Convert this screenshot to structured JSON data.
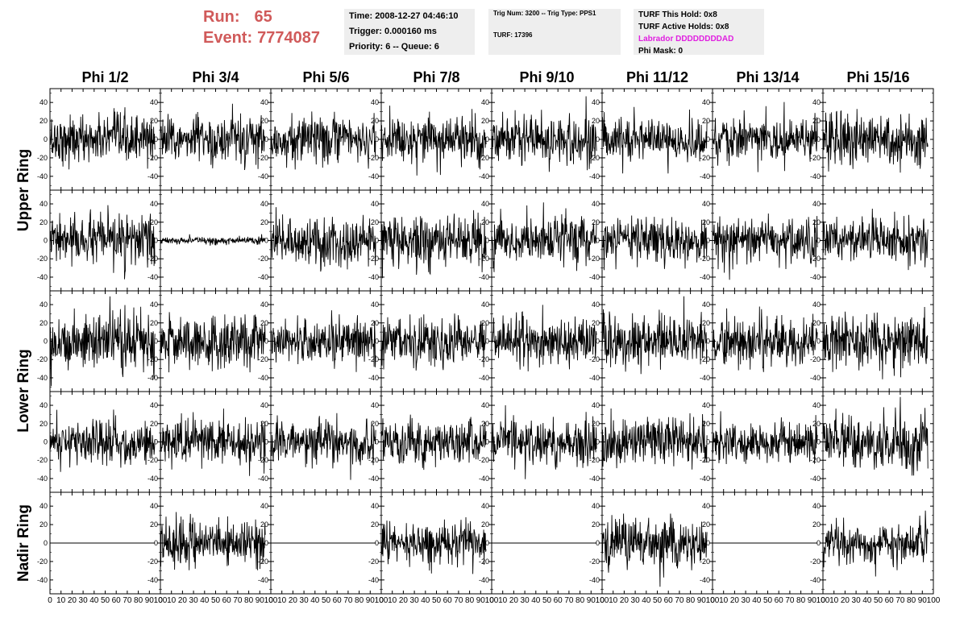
{
  "run_info": {
    "run_label": "Run:",
    "run_number": "65",
    "event_label": "Event:",
    "event_number": "7774087"
  },
  "info_panel_1": {
    "time": "Time: 2008-12-27 04:46:10",
    "trigger": "Trigger: 0.000160 ms",
    "priority": "Priority: 6 -- Queue: 6"
  },
  "info_panel_2": {
    "trig": "Trig Num: 3200 -- Trig Type: PPS1",
    "turf": "TURF: 17396"
  },
  "info_panel_3": {
    "hold": "TURF This Hold: 0x8",
    "active": "TURF Active Holds: 0x8",
    "labrador": "Labrador DDDDDDDDAD",
    "phimask": "Phi Mask: 0"
  },
  "colors": {
    "run_text": "#d05a5a",
    "labrador_text": "#e020e0",
    "trace": "#000000",
    "panel_bg": "#eeeeee"
  },
  "columns": [
    "Phi 1/2",
    "Phi 3/4",
    "Phi 5/6",
    "Phi 7/8",
    "Phi 9/10",
    "Phi 11/12",
    "Phi 13/14",
    "Phi 15/16"
  ],
  "rows": [
    "Upper Ring",
    "Upper Ring",
    "Lower Ring",
    "Lower Ring",
    "Nadir Ring"
  ],
  "ring_labels": [
    "Upper Ring",
    "Lower Ring",
    "Nadir Ring"
  ],
  "chart_data": {
    "type": "line",
    "grid": false,
    "xlim": [
      0,
      100
    ],
    "ylim": [
      -55,
      55
    ],
    "y_ticks": [
      -40,
      -20,
      0,
      20,
      40
    ],
    "x_tick_labels": [
      "0",
      "10",
      "20",
      "30",
      "40",
      "50",
      "60",
      "70",
      "80",
      "90",
      "100"
    ],
    "samples": 260,
    "x_end": 95,
    "waveform_amplitude": [
      [
        13,
        13,
        13,
        13,
        14,
        11,
        12,
        14
      ],
      [
        13,
        2,
        14,
        15,
        13,
        12,
        12,
        13
      ],
      [
        16,
        14,
        13,
        14,
        13,
        14,
        13,
        14
      ],
      [
        12,
        13,
        12,
        12,
        12,
        13,
        12,
        16
      ],
      [
        0,
        12,
        0,
        12,
        0,
        14,
        0,
        12
      ]
    ]
  }
}
